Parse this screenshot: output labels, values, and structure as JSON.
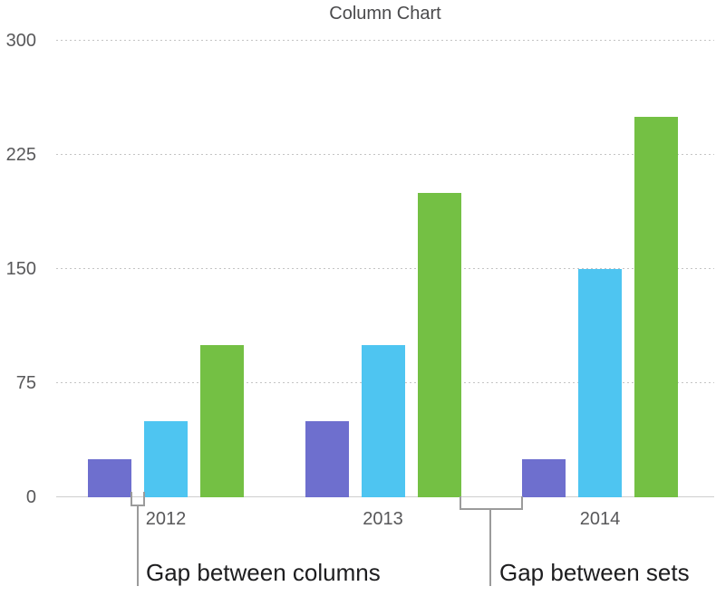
{
  "chart_data": {
    "type": "bar",
    "title": "Column Chart",
    "categories": [
      "2012",
      "2013",
      "2014"
    ],
    "series": [
      {
        "color": "#6e6fce",
        "values": [
          25,
          50,
          25
        ]
      },
      {
        "color": "#4ec5f1",
        "values": [
          50,
          100,
          150
        ]
      },
      {
        "color": "#74c044",
        "values": [
          100,
          200,
          250
        ]
      }
    ],
    "ylim": [
      0,
      300
    ],
    "yticks": [
      0,
      75,
      150,
      225,
      300
    ],
    "xlabel": "",
    "ylabel": "",
    "grid": "horizontal-dotted",
    "legend": "none"
  },
  "annotations": {
    "gap_columns": "Gap between columns",
    "gap_sets": "Gap between sets"
  }
}
